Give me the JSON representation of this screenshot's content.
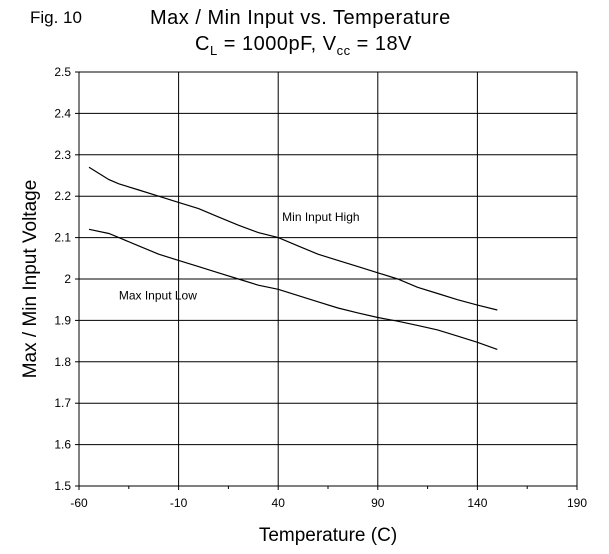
{
  "figure": {
    "fig_label": "Fig. 10",
    "title_line1": "Max / Min Input vs. Temperature",
    "title_line2_parts": {
      "c": "C",
      "l_sub": "L",
      "mid": " = 1000pF, V",
      "cc_sub": "cc",
      "end": " = 18V"
    }
  },
  "chart_data": {
    "type": "line",
    "title": "Max / Min Input vs. Temperature",
    "subtitle": "CL = 1000pF, Vcc = 18V",
    "xlabel": "Temperature (C)",
    "ylabel": "Max / Min Input Voltage",
    "xlim": [
      -60,
      190
    ],
    "ylim": [
      1.5,
      2.5
    ],
    "x_ticks": [
      -60,
      -10,
      40,
      90,
      140,
      190
    ],
    "x_tick_labels": [
      "-60",
      "-10",
      "40",
      "90",
      "140",
      "190"
    ],
    "y_ticks": [
      1.5,
      1.6,
      1.7,
      1.8,
      1.9,
      2.0,
      2.1,
      2.2,
      2.3,
      2.4,
      2.5
    ],
    "y_tick_labels": [
      "1.5",
      "1.6",
      "1.7",
      "1.8",
      "1.9",
      "2",
      "2.1",
      "2.2",
      "2.3",
      "2.4",
      "2.5"
    ],
    "grid": true,
    "series": [
      {
        "name": "Min Input High",
        "x": [
          -55,
          -45,
          -40,
          -30,
          -20,
          -10,
          0,
          10,
          20,
          30,
          40,
          50,
          60,
          70,
          80,
          90,
          100,
          110,
          120,
          130,
          140,
          150
        ],
        "y": [
          2.27,
          2.24,
          2.23,
          2.215,
          2.2,
          2.185,
          2.17,
          2.15,
          2.13,
          2.112,
          2.1,
          2.08,
          2.06,
          2.045,
          2.03,
          2.015,
          2.0,
          1.98,
          1.965,
          1.95,
          1.937,
          1.925
        ]
      },
      {
        "name": "Max Input Low",
        "x": [
          -55,
          -45,
          -40,
          -30,
          -20,
          -10,
          0,
          10,
          20,
          30,
          40,
          50,
          60,
          70,
          80,
          90,
          100,
          110,
          120,
          130,
          140,
          150
        ],
        "y": [
          2.12,
          2.11,
          2.1,
          2.08,
          2.06,
          2.045,
          2.03,
          2.015,
          2.0,
          1.985,
          1.975,
          1.96,
          1.945,
          1.93,
          1.918,
          1.907,
          1.898,
          1.888,
          1.877,
          1.862,
          1.847,
          1.83
        ]
      }
    ],
    "annotations": [
      {
        "text": "Min Input High",
        "x": 42,
        "y": 2.14
      },
      {
        "text": "Max Input Low",
        "x": -40,
        "y": 1.95
      }
    ]
  }
}
